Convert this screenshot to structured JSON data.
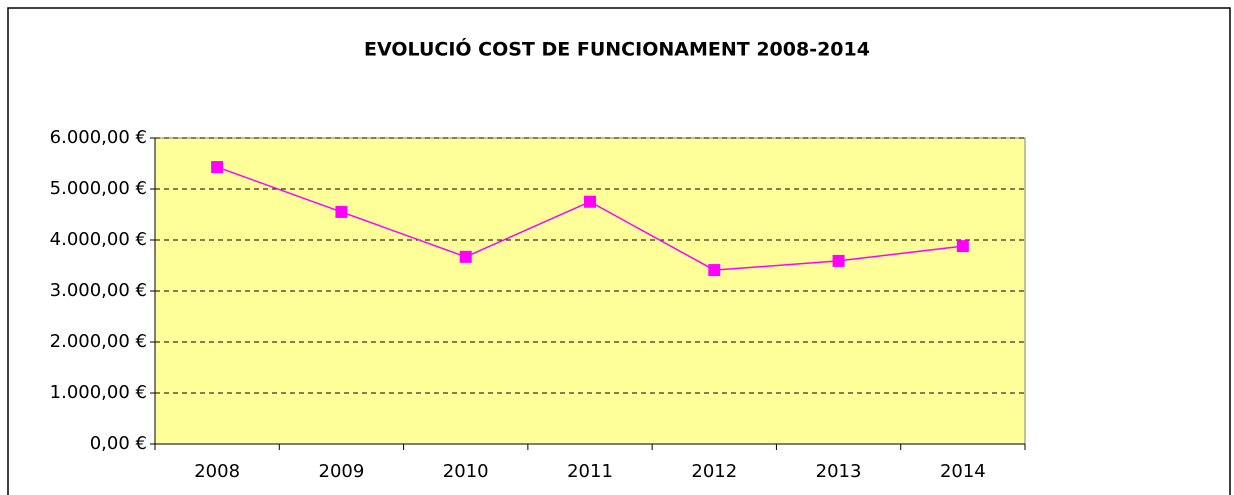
{
  "chart_data": {
    "type": "line",
    "title": "EVOLUCIÓ COST DE FUNCIONAMENT 2008-2014",
    "categories": [
      "2008",
      "2009",
      "2010",
      "2011",
      "2012",
      "2013",
      "2014"
    ],
    "values": [
      5430,
      4550,
      3670,
      4750,
      3410,
      3590,
      3880
    ],
    "color": "#ff00ff",
    "ylim": [
      0,
      6000
    ],
    "yticks": [
      {
        "value": 0,
        "label": "0,00 €"
      },
      {
        "value": 1000,
        "label": "1.000,00 €"
      },
      {
        "value": 2000,
        "label": "2.000,00 €"
      },
      {
        "value": 3000,
        "label": "3.000,00 €"
      },
      {
        "value": 4000,
        "label": "4.000,00 €"
      },
      {
        "value": 5000,
        "label": "5.000,00 €"
      },
      {
        "value": 6000,
        "label": "6.000,00 €"
      }
    ],
    "grid": true
  }
}
